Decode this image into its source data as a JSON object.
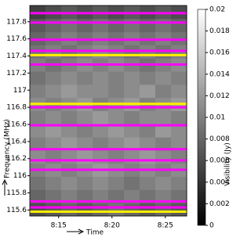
{
  "chart_data": {
    "type": "heatmap",
    "xlabel": "Time",
    "ylabel": "Frequency (MHz)",
    "colorbar_label": "Visibility (Jy)",
    "xlim": [
      492.3,
      507
    ],
    "xticks": [
      {
        "value": 495,
        "label": "8:15"
      },
      {
        "value": 500,
        "label": "8:20"
      },
      {
        "value": 505,
        "label": "8:25"
      }
    ],
    "ylim": [
      115.53,
      117.99
    ],
    "yticks": [
      115.6,
      115.8,
      116,
      116.2,
      116.4,
      116.6,
      116.8,
      117,
      117.2,
      117.4,
      117.6,
      117.8
    ],
    "clim": [
      0,
      0.02
    ],
    "cticks": [
      0,
      0.002,
      0.004,
      0.006,
      0.008,
      0.01,
      0.012,
      0.014,
      0.016,
      0.018,
      0.02
    ],
    "z": [
      [
        0.006,
        0.007,
        0.008,
        0.007,
        0.008,
        0.009,
        0.008,
        0.007,
        0.008,
        0.007
      ],
      [
        0.008,
        0.009,
        0.01,
        0.009,
        0.01,
        0.009,
        0.01,
        0.009,
        0.01,
        0.009
      ],
      [
        0.009,
        0.01,
        0.011,
        0.01,
        0.011,
        0.01,
        0.009,
        0.01,
        0.011,
        0.01
      ],
      [
        0.01,
        0.011,
        0.01,
        0.011,
        0.012,
        0.011,
        0.01,
        0.011,
        0.01,
        0.011
      ],
      [
        0.011,
        0.01,
        0.011,
        0.012,
        0.011,
        0.01,
        0.011,
        0.012,
        0.011,
        0.01
      ],
      [
        0.01,
        0.011,
        0.012,
        0.011,
        0.01,
        0.011,
        0.012,
        0.011,
        0.01,
        0.011
      ],
      [
        0.011,
        0.012,
        0.011,
        0.01,
        0.011,
        0.012,
        0.011,
        0.01,
        0.012,
        0.011
      ],
      [
        0.01,
        0.011,
        0.01,
        0.011,
        0.012,
        0.011,
        0.01,
        0.011,
        0.011,
        0.01
      ],
      [
        0.011,
        0.01,
        0.011,
        0.012,
        0.01,
        0.011,
        0.012,
        0.01,
        0.011,
        0.012
      ],
      [
        0.01,
        0.011,
        0.012,
        0.011,
        0.011,
        0.01,
        0.011,
        0.012,
        0.01,
        0.011
      ],
      [
        0.009,
        0.01,
        0.011,
        0.01,
        0.011,
        0.01,
        0.011,
        0.01,
        0.011,
        0.01
      ],
      [
        0.01,
        0.009,
        0.01,
        0.011,
        0.01,
        0.011,
        0.01,
        0.009,
        0.01,
        0.011
      ],
      [
        0.009,
        0.01,
        0.009,
        0.01,
        0.011,
        0.01,
        0.009,
        0.01,
        0.009,
        0.01
      ],
      [
        0.008,
        0.009,
        0.01,
        0.009,
        0.01,
        0.009,
        0.01,
        0.009,
        0.01,
        0.009
      ],
      [
        0.007,
        0.008,
        0.009,
        0.008,
        0.009,
        0.008,
        0.009,
        0.008,
        0.009,
        0.008
      ],
      [
        0.005,
        0.006,
        0.007,
        0.006,
        0.007,
        0.006,
        0.007,
        0.006,
        0.007,
        0.006
      ]
    ],
    "flagged": [
      {
        "color": "#ff00ff",
        "values": [
          117.9,
          117.79,
          117.59,
          117.46,
          117.3,
          116.8,
          116.59,
          116.31,
          116.18,
          116.07,
          115.7,
          115.63
        ]
      },
      {
        "color": "#ffee00",
        "values": [
          117.41,
          116.84,
          115.58
        ]
      }
    ]
  }
}
